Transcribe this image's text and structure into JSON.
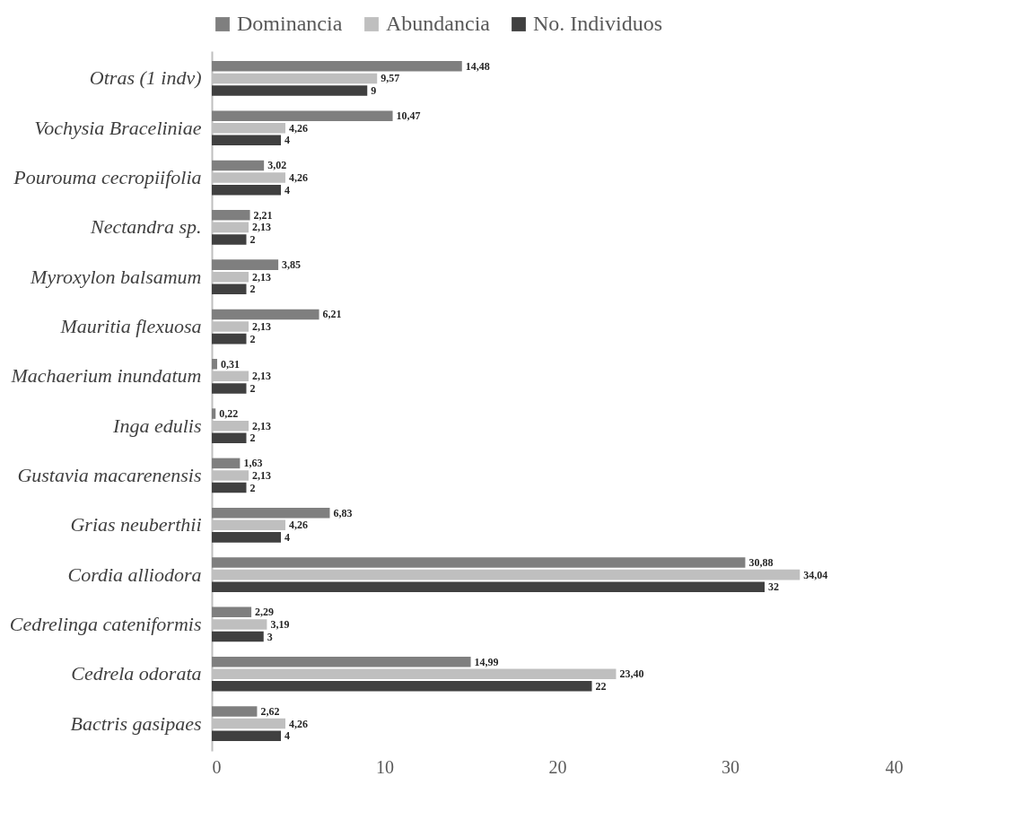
{
  "chart_data": {
    "type": "bar",
    "orientation": "horizontal",
    "categories": [
      "Otras (1 indv)",
      "Vochysia Braceliniae",
      "Pourouma cecropiifolia",
      "Nectandra sp.",
      "Myroxylon balsamum",
      "Mauritia flexuosa",
      "Machaerium inundatum",
      "Inga edulis",
      "Gustavia macarenensis",
      "Grias neuberthii",
      "Cordia alliodora",
      "Cedrelinga cateniformis",
      "Cedrela odorata",
      "Bactris gasipaes"
    ],
    "series": [
      {
        "name": "Dominancia",
        "color": "#7f7f7f",
        "values": [
          14.48,
          10.47,
          3.02,
          2.21,
          3.85,
          6.21,
          0.31,
          0.22,
          1.63,
          6.83,
          30.88,
          2.29,
          14.99,
          2.62
        ],
        "value_labels": [
          "14,48",
          "10,47",
          "3,02",
          "2,21",
          "3,85",
          "6,21",
          "0,31",
          "0,22",
          "1,63",
          "6,83",
          "30,88",
          "2,29",
          "14,99",
          "2,62"
        ]
      },
      {
        "name": "Abundancia",
        "color": "#bfbfbf",
        "values": [
          9.57,
          4.26,
          4.26,
          2.13,
          2.13,
          2.13,
          2.13,
          2.13,
          2.13,
          4.26,
          34.04,
          3.19,
          23.4,
          4.26
        ],
        "value_labels": [
          "9,57",
          "4,26",
          "4,26",
          "2,13",
          "2,13",
          "2,13",
          "2,13",
          "2,13",
          "2,13",
          "4,26",
          "34,04",
          "3,19",
          "23,40",
          "4,26"
        ]
      },
      {
        "name": "No. Individuos",
        "color": "#404040",
        "values": [
          9,
          4,
          4,
          2,
          2,
          2,
          2,
          2,
          2,
          4,
          32,
          3,
          22,
          4
        ],
        "value_labels": [
          "9",
          "4",
          "4",
          "2",
          "2",
          "2",
          "2",
          "2",
          "2",
          "4",
          "32",
          "3",
          "22",
          "4"
        ]
      }
    ],
    "xlim": [
      0,
      40
    ],
    "xticks": [
      0,
      10,
      20,
      30,
      40
    ],
    "legend": "top"
  }
}
